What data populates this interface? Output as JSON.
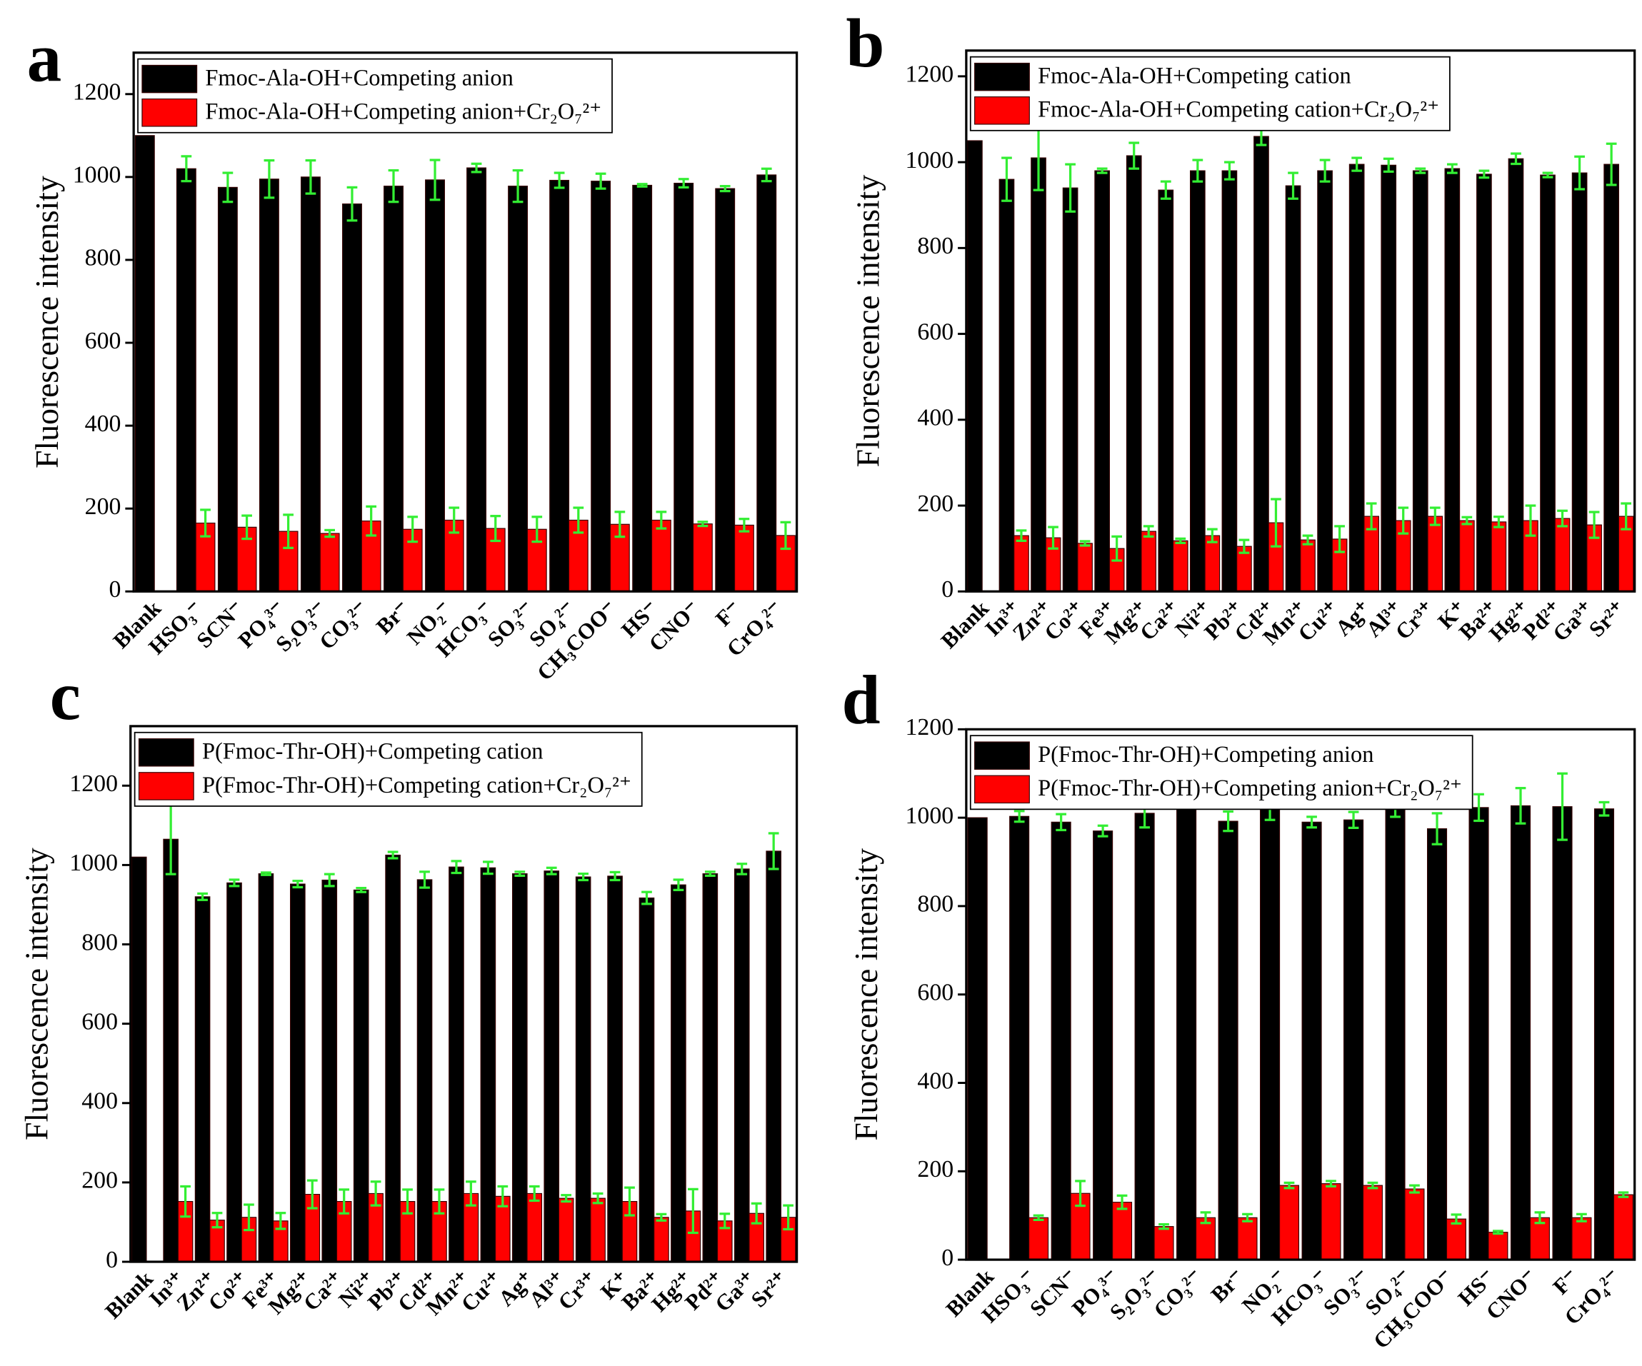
{
  "chart_data": [
    {
      "type": "bar",
      "panel_label": "a",
      "ylabel": "Fluorescence intensity",
      "legend": "upper left",
      "categories": [
        "Blank",
        "HSO₃⁻",
        "SCN⁻",
        "PO₄³⁻",
        "S₂O₃²⁻",
        "CO₃²⁻",
        "Br⁻",
        "NO₂⁻",
        "HCO₃⁻",
        "SO₃²⁻",
        "SO₄²⁻",
        "CH₃COO⁻",
        "HS⁻",
        "CNO⁻",
        "F⁻",
        "CrO₄²⁻"
      ],
      "series": [
        {
          "name": "Fmoc-Ala-OH+Competing anion",
          "color": "#000000",
          "values": [
            1100,
            1020,
            975,
            995,
            1000,
            935,
            978,
            993,
            1022,
            978,
            992,
            990,
            980,
            985,
            972,
            1005
          ],
          "errors": [
            null,
            30,
            35,
            45,
            40,
            40,
            38,
            48,
            10,
            38,
            18,
            18,
            3,
            10,
            6,
            15
          ]
        },
        {
          "name": "Fmoc-Ala-OH+Competing anion+Cr₂O₇²⁺",
          "color": "#ff0000",
          "values": [
            null,
            165,
            155,
            145,
            140,
            170,
            150,
            172,
            152,
            150,
            172,
            162,
            172,
            163,
            160,
            135
          ],
          "errors": [
            null,
            32,
            28,
            40,
            8,
            35,
            30,
            30,
            30,
            30,
            30,
            30,
            20,
            5,
            15,
            32
          ]
        }
      ],
      "ylim": [
        0,
        1300
      ],
      "yticks": [
        0,
        200,
        400,
        600,
        800,
        1000,
        1200
      ]
    },
    {
      "type": "bar",
      "panel_label": "b",
      "ylabel": "Fluorescence intensity",
      "legend": "upper left",
      "categories": [
        "Blank",
        "In³⁺",
        "Zn²⁺",
        "Co²⁺",
        "Fe³⁺",
        "Mg²⁺",
        "Ca²⁺",
        "Ni²⁺",
        "Pb²⁺",
        "Cd²⁺",
        "Mn²⁺",
        "Cu²⁺",
        "Ag⁺",
        "Al³⁺",
        "Cr³⁺",
        "K⁺",
        "Ba²⁺",
        "Hg²⁺",
        "Pd²⁺",
        "Ga³⁺",
        "Sr²⁺"
      ],
      "series": [
        {
          "name": "Fmoc-Ala-OH+Competing cation",
          "color": "#000000",
          "values": [
            1050,
            960,
            1010,
            940,
            980,
            1015,
            935,
            980,
            980,
            1060,
            945,
            980,
            995,
            993,
            980,
            985,
            972,
            1008,
            970,
            975,
            995
          ],
          "errors": [
            null,
            50,
            75,
            55,
            5,
            30,
            20,
            25,
            20,
            20,
            30,
            25,
            15,
            15,
            5,
            10,
            8,
            12,
            5,
            38,
            48
          ]
        },
        {
          "name": "Fmoc-Ala-OH+Competing cation+Cr₂O₇²⁺",
          "color": "#ff0000",
          "values": [
            null,
            130,
            125,
            112,
            100,
            140,
            118,
            130,
            105,
            160,
            120,
            122,
            175,
            165,
            175,
            165,
            162,
            165,
            170,
            155,
            175
          ],
          "errors": [
            null,
            12,
            25,
            5,
            28,
            12,
            5,
            15,
            15,
            55,
            10,
            30,
            30,
            30,
            20,
            8,
            12,
            35,
            18,
            30,
            30
          ]
        }
      ],
      "ylim": [
        0,
        1260
      ],
      "yticks": [
        0,
        200,
        400,
        600,
        800,
        1000,
        1200
      ]
    },
    {
      "type": "bar",
      "panel_label": "c",
      "ylabel": "Fluorescence intensity",
      "legend": "upper left",
      "categories": [
        "Blank",
        "In³⁺",
        "Zn²⁺",
        "Co²⁺",
        "Fe³⁺",
        "Mg²⁺",
        "Ca²⁺",
        "Ni²⁺",
        "Pb²⁺",
        "Cd²⁺",
        "Mn²⁺",
        "Cu²⁺",
        "Ag⁺",
        "Al³⁺",
        "Cr³⁺",
        "K⁺",
        "Ba²⁺",
        "Hg²⁺",
        "Pd²⁺",
        "Ga³⁺",
        "Sr²⁺"
      ],
      "series": [
        {
          "name": "P(Fmoc-Thr-OH)+Competing cation",
          "color": "#000000",
          "values": [
            1020,
            1065,
            920,
            955,
            978,
            952,
            962,
            937,
            1025,
            963,
            995,
            993,
            978,
            985,
            970,
            972,
            917,
            950,
            978,
            990,
            1035
          ],
          "errors": [
            null,
            88,
            8,
            8,
            3,
            8,
            15,
            5,
            8,
            20,
            15,
            15,
            5,
            8,
            8,
            10,
            15,
            13,
            5,
            13,
            45
          ]
        },
        {
          "name": "P(Fmoc-Thr-OH)+Competing cation+Cr₂O₇²⁺",
          "color": "#ff0000",
          "values": [
            null,
            152,
            105,
            112,
            103,
            170,
            152,
            172,
            152,
            152,
            172,
            165,
            172,
            160,
            160,
            152,
            112,
            128,
            103,
            122,
            112
          ],
          "errors": [
            null,
            38,
            18,
            32,
            20,
            35,
            30,
            30,
            30,
            30,
            30,
            25,
            18,
            8,
            12,
            35,
            8,
            55,
            18,
            25,
            30
          ]
        }
      ],
      "ylim": [
        0,
        1350
      ],
      "yticks": [
        0,
        200,
        400,
        600,
        800,
        1000,
        1200
      ]
    },
    {
      "type": "bar",
      "panel_label": "d",
      "ylabel": "Fluorescence intensity",
      "legend": "upper left",
      "categories": [
        "Blank",
        "HSO₃⁻",
        "SCN⁻",
        "PO₄³⁻",
        "S₂O₃²⁻",
        "CO₃²⁻",
        "Br⁻",
        "NO₂⁻",
        "HCO₃⁻",
        "SO₃²⁻",
        "SO₄²⁻",
        "CH₃COO⁻",
        "HS⁻",
        "CNO⁻",
        "F⁻",
        "CrO₄²⁻"
      ],
      "series": [
        {
          "name": "P(Fmoc-Thr-OH)+Competing anion",
          "color": "#000000",
          "values": [
            1000,
            1003,
            990,
            970,
            1010,
            1030,
            992,
            1020,
            990,
            995,
            1020,
            975,
            1023,
            1027,
            1025,
            1020
          ],
          "errors": [
            null,
            12,
            18,
            12,
            32,
            5,
            22,
            25,
            12,
            18,
            18,
            35,
            30,
            40,
            75,
            15
          ]
        },
        {
          "name": "P(Fmoc-Thr-OH)+Competing anion+Cr₂O₇²⁺",
          "color": "#ff0000",
          "values": [
            null,
            95,
            150,
            130,
            75,
            95,
            95,
            168,
            172,
            168,
            160,
            92,
            62,
            95,
            95,
            147
          ],
          "errors": [
            null,
            5,
            28,
            15,
            5,
            12,
            8,
            6,
            6,
            6,
            8,
            10,
            3,
            12,
            8,
            5
          ]
        }
      ],
      "ylim": [
        0,
        1200
      ],
      "yticks": [
        0,
        200,
        400,
        600,
        800,
        1000,
        1200
      ]
    }
  ]
}
